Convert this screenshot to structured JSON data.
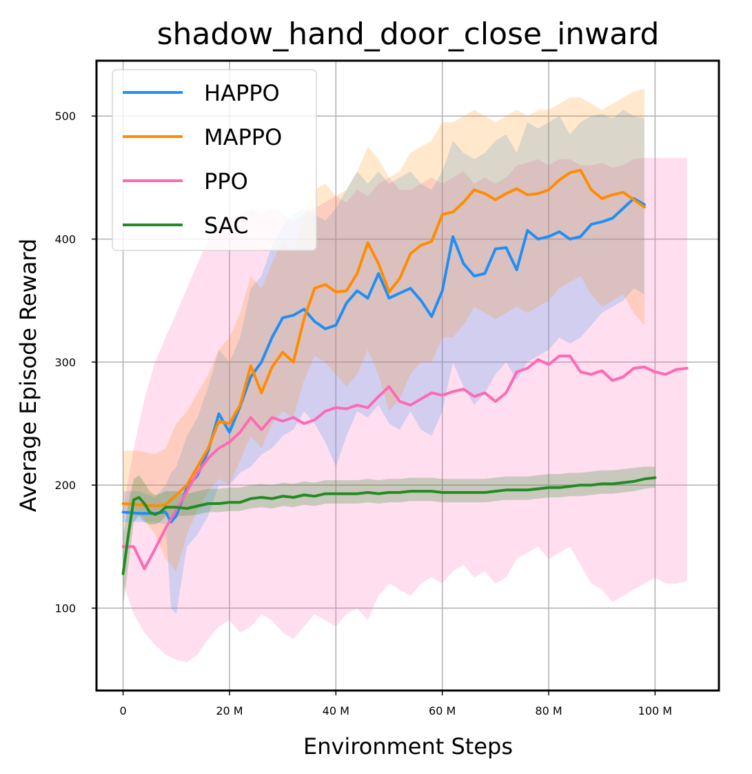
{
  "chart_data": {
    "type": "line",
    "title": "shadow_hand_door_close_inward",
    "xlabel": "Environment Steps",
    "ylabel": "Average Episode Reward",
    "xlim": [
      -5,
      112
    ],
    "ylim": [
      33,
      545
    ],
    "x_unit": "M steps",
    "xticks": [
      0,
      20,
      40,
      60,
      80,
      100
    ],
    "xtick_labels": [
      "0",
      "20 M",
      "40 M",
      "60 M",
      "80 M",
      "100 M"
    ],
    "yticks": [
      100,
      200,
      300,
      400,
      500
    ],
    "ytick_labels": [
      "100",
      "200",
      "300",
      "400",
      "500"
    ],
    "grid": true,
    "legend_position": "top-left",
    "series": [
      {
        "name": "HAPPO",
        "color": "#1e8ff5",
        "x": [
          0,
          3,
          6,
          8,
          9,
          10,
          12,
          14,
          16,
          18,
          20,
          22,
          24,
          26,
          28,
          30,
          32,
          34,
          36,
          38,
          40,
          42,
          44,
          46,
          48,
          50,
          52,
          54,
          56,
          58,
          60,
          62,
          64,
          66,
          68,
          70,
          72,
          74,
          76,
          78,
          80,
          82,
          84,
          86,
          88,
          90,
          92,
          94,
          96,
          98
        ],
        "y": [
          178,
          177,
          177,
          178,
          170,
          175,
          198,
          208,
          228,
          258,
          243,
          264,
          288,
          300,
          320,
          336,
          338,
          343,
          333,
          327,
          330,
          348,
          358,
          352,
          372,
          352,
          356,
          360,
          350,
          337,
          358,
          402,
          380,
          370,
          372,
          392,
          393,
          375,
          407,
          400,
          402,
          406,
          400,
          402,
          412,
          414,
          417,
          425,
          433,
          428
        ],
        "band_low": [
          170,
          170,
          170,
          168,
          100,
          95,
          150,
          160,
          175,
          200,
          200,
          210,
          215,
          225,
          230,
          240,
          245,
          260,
          250,
          235,
          215,
          240,
          260,
          255,
          265,
          250,
          245,
          260,
          245,
          240,
          260,
          300,
          280,
          265,
          275,
          290,
          300,
          285,
          300,
          305,
          310,
          320,
          315,
          320,
          330,
          340,
          345,
          350,
          360,
          355
        ],
        "band_high": [
          195,
          195,
          190,
          200,
          210,
          215,
          240,
          255,
          280,
          310,
          300,
          320,
          360,
          370,
          395,
          410,
          420,
          425,
          420,
          415,
          425,
          440,
          455,
          445,
          455,
          445,
          450,
          455,
          445,
          440,
          455,
          480,
          470,
          465,
          470,
          480,
          485,
          470,
          495,
          490,
          495,
          500,
          485,
          495,
          500,
          502,
          498,
          505,
          500,
          498
        ]
      },
      {
        "name": "MAPPO",
        "color": "#ff8c00",
        "x": [
          0,
          3,
          6,
          8,
          10,
          12,
          14,
          16,
          18,
          20,
          22,
          24,
          26,
          28,
          30,
          32,
          34,
          36,
          38,
          40,
          42,
          44,
          46,
          48,
          50,
          52,
          54,
          56,
          58,
          60,
          62,
          64,
          66,
          68,
          70,
          72,
          74,
          76,
          78,
          80,
          82,
          84,
          86,
          88,
          90,
          92,
          94,
          96,
          98
        ],
        "y": [
          185,
          184,
          183,
          184,
          192,
          200,
          215,
          230,
          252,
          250,
          265,
          297,
          275,
          296,
          308,
          300,
          335,
          360,
          363,
          357,
          358,
          372,
          397,
          380,
          357,
          368,
          388,
          395,
          398,
          420,
          422,
          430,
          440,
          437,
          432,
          437,
          441,
          436,
          437,
          440,
          448,
          454,
          456,
          440,
          433,
          436,
          438,
          432,
          426
        ],
        "band_low": [
          180,
          178,
          160,
          140,
          130,
          160,
          180,
          195,
          205,
          200,
          220,
          240,
          230,
          250,
          260,
          255,
          285,
          305,
          300,
          290,
          280,
          290,
          310,
          290,
          260,
          270,
          290,
          300,
          300,
          320,
          320,
          330,
          345,
          340,
          335,
          340,
          345,
          340,
          345,
          350,
          360,
          365,
          370,
          355,
          345,
          350,
          355,
          340,
          330
        ],
        "band_high": [
          228,
          228,
          225,
          230,
          250,
          260,
          275,
          290,
          310,
          320,
          340,
          370,
          360,
          380,
          400,
          390,
          420,
          440,
          445,
          435,
          440,
          455,
          475,
          465,
          450,
          455,
          470,
          475,
          480,
          495,
          495,
          500,
          505,
          500,
          495,
          500,
          505,
          500,
          505,
          505,
          510,
          515,
          515,
          510,
          505,
          510,
          515,
          520,
          522
        ]
      },
      {
        "name": "PPO",
        "color": "#ff69b4",
        "x": [
          0,
          2,
          4,
          6,
          8,
          10,
          12,
          14,
          16,
          18,
          20,
          22,
          24,
          26,
          28,
          30,
          32,
          34,
          36,
          38,
          40,
          42,
          44,
          46,
          48,
          50,
          52,
          54,
          56,
          58,
          60,
          62,
          64,
          66,
          68,
          70,
          72,
          74,
          76,
          78,
          80,
          82,
          84,
          86,
          88,
          90,
          92,
          94,
          96,
          98,
          100,
          102,
          104,
          106
        ],
        "y": [
          150,
          150,
          132,
          148,
          165,
          180,
          195,
          210,
          222,
          230,
          235,
          243,
          255,
          245,
          255,
          252,
          255,
          250,
          253,
          260,
          263,
          262,
          265,
          263,
          272,
          280,
          268,
          265,
          270,
          275,
          273,
          276,
          278,
          272,
          275,
          268,
          275,
          292,
          295,
          302,
          298,
          305,
          305,
          292,
          290,
          293,
          285,
          288,
          295,
          296,
          292,
          290,
          294,
          295
        ],
        "band_low": [
          120,
          95,
          80,
          70,
          62,
          58,
          56,
          62,
          75,
          85,
          90,
          80,
          85,
          95,
          90,
          80,
          75,
          85,
          95,
          90,
          85,
          95,
          100,
          90,
          110,
          120,
          115,
          110,
          120,
          125,
          120,
          130,
          135,
          125,
          130,
          120,
          125,
          140,
          145,
          150,
          140,
          145,
          150,
          135,
          120,
          115,
          105,
          110,
          115,
          120,
          125,
          120,
          120,
          122
        ],
        "band_high": [
          180,
          230,
          270,
          300,
          320,
          340,
          360,
          380,
          400,
          410,
          415,
          420,
          425,
          420,
          425,
          420,
          415,
          420,
          425,
          430,
          435,
          430,
          440,
          435,
          445,
          450,
          440,
          440,
          445,
          450,
          445,
          450,
          455,
          445,
          450,
          445,
          450,
          460,
          462,
          465,
          460,
          465,
          465,
          460,
          460,
          462,
          458,
          460,
          465,
          466,
          466,
          466,
          466,
          466
        ]
      },
      {
        "name": "SAC",
        "color": "#228b22",
        "x": [
          0,
          1,
          2,
          3,
          4,
          5,
          6,
          7,
          8,
          10,
          12,
          14,
          16,
          18,
          20,
          22,
          24,
          26,
          28,
          30,
          32,
          34,
          36,
          38,
          40,
          42,
          44,
          46,
          48,
          50,
          52,
          54,
          56,
          58,
          60,
          62,
          64,
          66,
          68,
          70,
          72,
          74,
          76,
          78,
          80,
          82,
          84,
          86,
          88,
          90,
          92,
          94,
          96,
          98,
          100
        ],
        "y": [
          128,
          160,
          188,
          190,
          185,
          178,
          176,
          178,
          182,
          182,
          181,
          183,
          185,
          185,
          186,
          186,
          189,
          190,
          189,
          191,
          190,
          192,
          191,
          193,
          193,
          193,
          193,
          194,
          193,
          194,
          194,
          195,
          195,
          195,
          194,
          194,
          194,
          194,
          194,
          195,
          196,
          196,
          196,
          197,
          198,
          198,
          199,
          200,
          200,
          201,
          201,
          202,
          203,
          205,
          206
        ],
        "band_low": [
          102,
          135,
          170,
          175,
          170,
          168,
          168,
          170,
          175,
          175,
          175,
          176,
          178,
          178,
          179,
          179,
          181,
          182,
          181,
          183,
          182,
          184,
          183,
          185,
          185,
          185,
          185,
          186,
          185,
          186,
          186,
          187,
          187,
          187,
          186,
          186,
          186,
          186,
          186,
          187,
          188,
          188,
          188,
          189,
          190,
          190,
          191,
          191,
          192,
          193,
          193,
          194,
          195,
          197,
          198
        ],
        "band_high": [
          160,
          185,
          205,
          208,
          202,
          195,
          192,
          193,
          195,
          195,
          193,
          195,
          197,
          197,
          198,
          198,
          200,
          201,
          200,
          202,
          201,
          203,
          202,
          204,
          204,
          204,
          204,
          205,
          204,
          205,
          205,
          206,
          206,
          206,
          205,
          205,
          205,
          205,
          205,
          206,
          207,
          207,
          207,
          208,
          209,
          209,
          210,
          210,
          211,
          212,
          212,
          213,
          214,
          215,
          215
        ]
      }
    ]
  }
}
